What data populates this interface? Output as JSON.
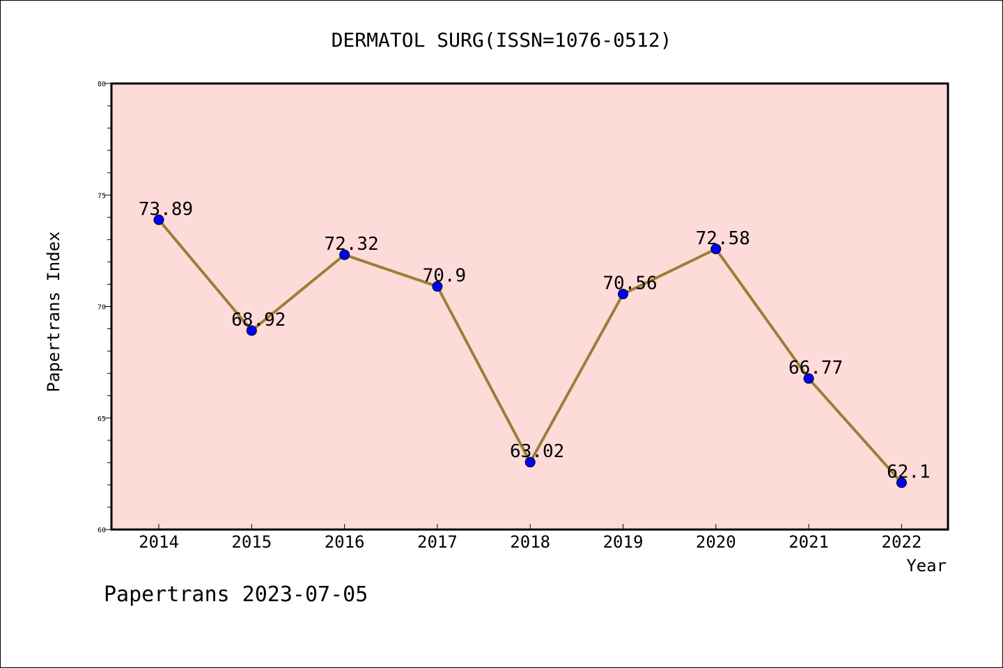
{
  "chart_data": {
    "type": "line",
    "title": "DERMATOL SURG(ISSN=1076-0512)",
    "xlabel": "Year",
    "ylabel": "Papertrans Index",
    "categories": [
      "2014",
      "2015",
      "2016",
      "2017",
      "2018",
      "2019",
      "2020",
      "2021",
      "2022"
    ],
    "series": [
      {
        "values": [
          73.89,
          68.92,
          72.32,
          70.9,
          63.02,
          70.56,
          72.58,
          66.77,
          62.1
        ],
        "labels": [
          "73.89",
          "68.92",
          "72.32",
          "70.9",
          "63.02",
          "70.56",
          "72.58",
          "66.77",
          "62.1"
        ]
      }
    ],
    "ylim": [
      60,
      80
    ],
    "yticks": [
      "60",
      "65",
      "70",
      "75",
      "80"
    ],
    "grid": false,
    "legend": "none",
    "colors": {
      "plot_background": "#fddbd9",
      "line": "#9b7f38",
      "marker": "#0000ff"
    }
  },
  "footer": "Papertrans 2023-07-05"
}
